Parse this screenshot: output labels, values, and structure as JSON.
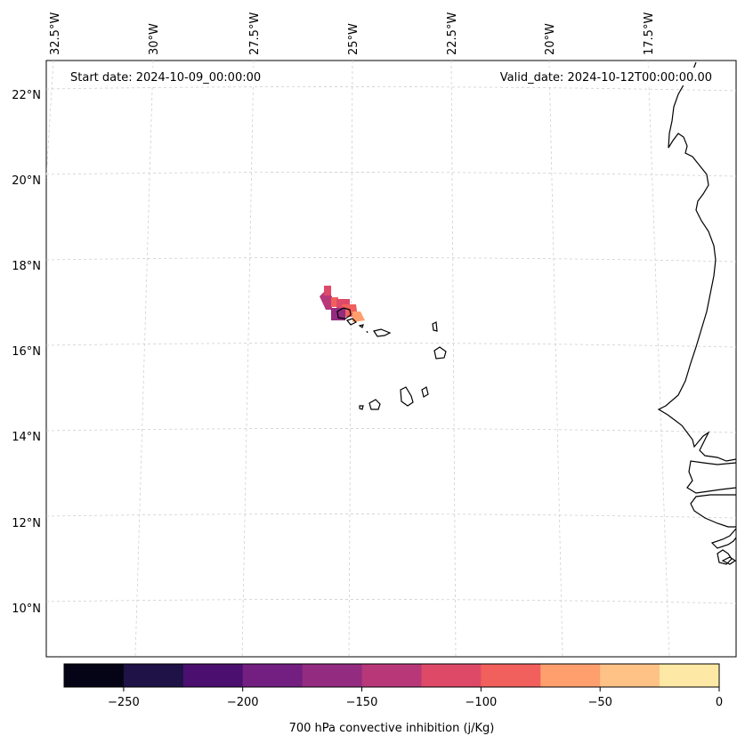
{
  "map": {
    "start_date_label": "Start date: 2024-10-09_00:00:00",
    "valid_date_label": "Valid_date: 2024-10-12T00:00:00.00",
    "lon_labels": [
      "32.5°W",
      "30°W",
      "27.5°W",
      "25°W",
      "22.5°W",
      "20°W",
      "17.5°W"
    ],
    "lat_labels": [
      "22°N",
      "20°N",
      "18°N",
      "16°N",
      "14°N",
      "12°N",
      "10°N"
    ]
  },
  "colorbar": {
    "label": "700 hPa convective inhibition (j/Kg)",
    "ticks": [
      "−250",
      "−200",
      "−150",
      "−100",
      "−50",
      "0"
    ],
    "bins": [
      {
        "from": -275,
        "to": -250,
        "color": "#050416"
      },
      {
        "from": -250,
        "to": -225,
        "color": "#1e1246"
      },
      {
        "from": -225,
        "to": -200,
        "color": "#4b0f6f"
      },
      {
        "from": -200,
        "to": -175,
        "color": "#721f81"
      },
      {
        "from": -175,
        "to": -150,
        "color": "#932b80"
      },
      {
        "from": -150,
        "to": -125,
        "color": "#b73779"
      },
      {
        "from": -125,
        "to": -100,
        "color": "#de4968"
      },
      {
        "from": -100,
        "to": -75,
        "color": "#f1605d"
      },
      {
        "from": -75,
        "to": -50,
        "color": "#fe9f6d"
      },
      {
        "from": -50,
        "to": -25,
        "color": "#fec287"
      },
      {
        "from": -25,
        "to": 0,
        "color": "#fde9a5"
      }
    ]
  }
}
